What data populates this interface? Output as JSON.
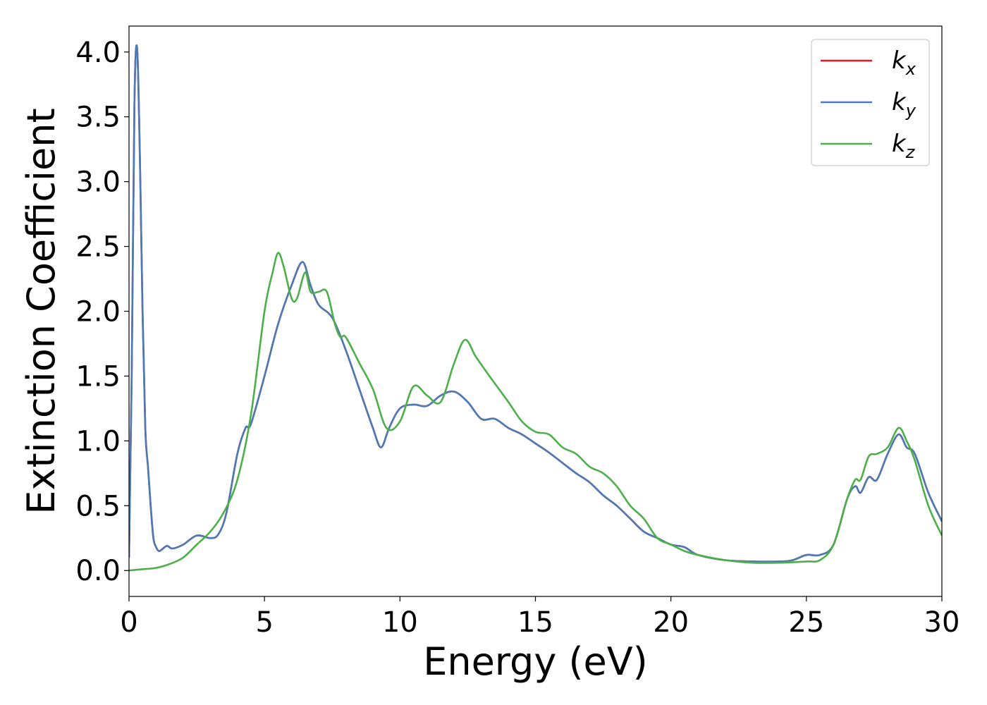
{
  "chart_data": {
    "type": "line",
    "xlabel": "Energy (eV)",
    "ylabel": "Extinction Coefficient",
    "xlim": [
      0,
      30
    ],
    "ylim": [
      -0.2,
      4.2
    ],
    "xticks": [
      0,
      5,
      10,
      15,
      20,
      25,
      30
    ],
    "xtick_labels": [
      "0",
      "5",
      "10",
      "15",
      "20",
      "25",
      "30"
    ],
    "yticks": [
      0.0,
      0.5,
      1.0,
      1.5,
      2.0,
      2.5,
      3.0,
      3.5,
      4.0
    ],
    "ytick_labels": [
      "0.0",
      "0.5",
      "1.0",
      "1.5",
      "2.0",
      "2.5",
      "3.0",
      "3.5",
      "4.0"
    ],
    "grid": false,
    "legend_position": "top-right",
    "series": [
      {
        "name": "k",
        "subscript": "x",
        "color": "#e41a1c",
        "x": [
          0,
          0.1,
          0.2,
          0.3,
          0.4,
          0.5,
          0.6,
          0.7,
          0.8,
          0.9,
          1.0,
          1.1,
          1.2,
          1.4,
          1.6,
          2.0,
          2.5,
          3.0,
          3.3,
          3.6,
          4.0,
          4.3,
          4.5,
          5.0,
          5.5,
          6.0,
          6.4,
          6.7,
          7.0,
          7.5,
          8.0,
          8.5,
          9.0,
          9.3,
          9.6,
          10.0,
          10.5,
          11.0,
          11.5,
          12.0,
          12.5,
          13.0,
          13.5,
          14.0,
          14.5,
          15.0,
          15.5,
          16.0,
          16.5,
          17.0,
          17.5,
          18.0,
          18.5,
          19.0,
          19.5,
          20.0,
          20.5,
          21.0,
          22.0,
          23.0,
          24.0,
          24.5,
          25.0,
          25.5,
          26.0,
          26.5,
          26.8,
          27.0,
          27.3,
          27.6,
          28.0,
          28.4,
          28.7,
          29.0,
          29.5,
          30.0
        ],
        "values": [
          0.1,
          1.5,
          3.6,
          4.03,
          3.2,
          2.0,
          1.1,
          0.8,
          0.5,
          0.25,
          0.18,
          0.15,
          0.16,
          0.19,
          0.17,
          0.2,
          0.27,
          0.25,
          0.28,
          0.45,
          0.9,
          1.1,
          1.13,
          1.5,
          1.9,
          2.2,
          2.38,
          2.2,
          2.05,
          1.95,
          1.7,
          1.4,
          1.1,
          0.95,
          1.1,
          1.25,
          1.28,
          1.27,
          1.35,
          1.38,
          1.3,
          1.17,
          1.17,
          1.1,
          1.05,
          0.98,
          0.91,
          0.83,
          0.75,
          0.68,
          0.58,
          0.5,
          0.4,
          0.3,
          0.25,
          0.2,
          0.18,
          0.12,
          0.08,
          0.07,
          0.07,
          0.08,
          0.12,
          0.12,
          0.2,
          0.55,
          0.65,
          0.6,
          0.72,
          0.7,
          0.9,
          1.05,
          0.95,
          0.9,
          0.6,
          0.38
        ]
      },
      {
        "name": "k",
        "subscript": "y",
        "color": "#4a7bb7",
        "x": [
          0,
          0.1,
          0.2,
          0.3,
          0.4,
          0.5,
          0.6,
          0.7,
          0.8,
          0.9,
          1.0,
          1.1,
          1.2,
          1.4,
          1.6,
          2.0,
          2.5,
          3.0,
          3.3,
          3.6,
          4.0,
          4.3,
          4.5,
          5.0,
          5.5,
          6.0,
          6.4,
          6.7,
          7.0,
          7.5,
          8.0,
          8.5,
          9.0,
          9.3,
          9.6,
          10.0,
          10.5,
          11.0,
          11.5,
          12.0,
          12.5,
          13.0,
          13.5,
          14.0,
          14.5,
          15.0,
          15.5,
          16.0,
          16.5,
          17.0,
          17.5,
          18.0,
          18.5,
          19.0,
          19.5,
          20.0,
          20.5,
          21.0,
          22.0,
          23.0,
          24.0,
          24.5,
          25.0,
          25.5,
          26.0,
          26.5,
          26.8,
          27.0,
          27.3,
          27.6,
          28.0,
          28.4,
          28.7,
          29.0,
          29.5,
          30.0
        ],
        "values": [
          0.1,
          1.5,
          3.6,
          4.03,
          3.2,
          2.0,
          1.1,
          0.8,
          0.5,
          0.25,
          0.18,
          0.15,
          0.16,
          0.19,
          0.17,
          0.2,
          0.27,
          0.25,
          0.28,
          0.45,
          0.9,
          1.1,
          1.13,
          1.5,
          1.9,
          2.2,
          2.38,
          2.2,
          2.05,
          1.95,
          1.7,
          1.4,
          1.1,
          0.95,
          1.1,
          1.25,
          1.28,
          1.27,
          1.35,
          1.38,
          1.3,
          1.17,
          1.17,
          1.1,
          1.05,
          0.98,
          0.91,
          0.83,
          0.75,
          0.68,
          0.58,
          0.5,
          0.4,
          0.3,
          0.25,
          0.2,
          0.18,
          0.12,
          0.08,
          0.07,
          0.07,
          0.08,
          0.12,
          0.12,
          0.2,
          0.55,
          0.65,
          0.6,
          0.72,
          0.7,
          0.9,
          1.05,
          0.95,
          0.9,
          0.6,
          0.38
        ]
      },
      {
        "name": "k",
        "subscript": "z",
        "color": "#4daf4a",
        "x": [
          0,
          0.5,
          1.0,
          1.5,
          2.0,
          2.5,
          3.0,
          3.5,
          4.0,
          4.5,
          5.0,
          5.3,
          5.5,
          5.7,
          6.0,
          6.2,
          6.5,
          6.7,
          7.0,
          7.3,
          7.6,
          7.8,
          8.0,
          8.5,
          9.0,
          9.5,
          10.0,
          10.5,
          11.0,
          11.5,
          12.0,
          12.4,
          12.8,
          13.3,
          14.0,
          14.5,
          15.0,
          15.5,
          16.0,
          16.5,
          17.0,
          17.5,
          18.0,
          18.5,
          19.0,
          19.5,
          20.0,
          20.5,
          21.0,
          22.0,
          23.0,
          24.0,
          25.0,
          25.5,
          26.0,
          26.5,
          26.8,
          27.0,
          27.3,
          27.6,
          28.0,
          28.4,
          28.7,
          29.0,
          29.5,
          30.0
        ],
        "values": [
          0.0,
          0.01,
          0.02,
          0.05,
          0.1,
          0.2,
          0.3,
          0.45,
          0.7,
          1.2,
          2.0,
          2.3,
          2.45,
          2.35,
          2.1,
          2.1,
          2.3,
          2.15,
          2.15,
          2.15,
          1.9,
          1.8,
          1.8,
          1.6,
          1.4,
          1.1,
          1.15,
          1.42,
          1.35,
          1.3,
          1.6,
          1.78,
          1.65,
          1.5,
          1.3,
          1.15,
          1.07,
          1.05,
          0.95,
          0.9,
          0.8,
          0.75,
          0.65,
          0.5,
          0.4,
          0.25,
          0.2,
          0.15,
          0.12,
          0.08,
          0.06,
          0.06,
          0.07,
          0.08,
          0.2,
          0.55,
          0.7,
          0.7,
          0.88,
          0.9,
          0.95,
          1.1,
          1.0,
          0.85,
          0.5,
          0.27
        ]
      }
    ]
  }
}
